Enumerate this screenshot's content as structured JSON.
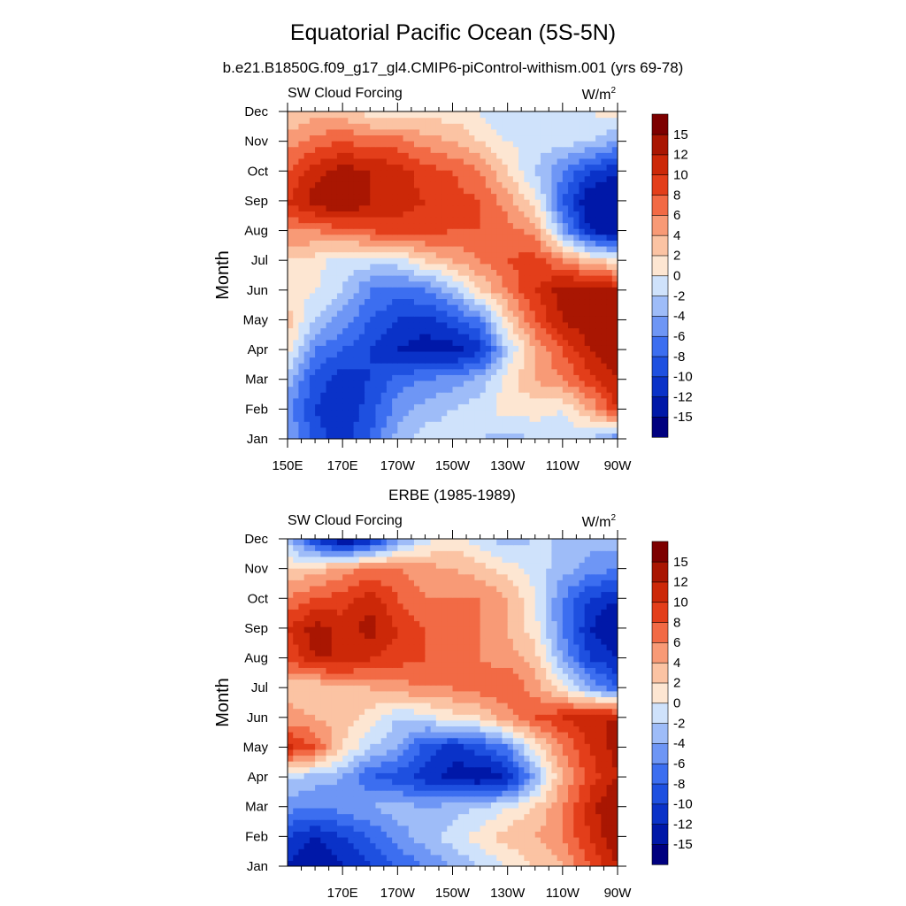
{
  "figure": {
    "title": "Equatorial Pacific Ocean (5S-5N)",
    "subtitle": "b.e21.B1850G.f09_g17_gl4.CMIP6-piControl-withism.001 (yrs 69-78)"
  },
  "colors": {
    "palette": [
      "#00007f",
      "#0018a8",
      "#0a32c8",
      "#1e50e0",
      "#3c6ef0",
      "#6e96f5",
      "#9ebcf8",
      "#cfe2fb",
      "#fde6d2",
      "#fbc3a3",
      "#f89a76",
      "#f26a45",
      "#e33e1a",
      "#cc2808",
      "#a91602",
      "#7d0000"
    ]
  },
  "chart_data": [
    {
      "type": "heatmap",
      "panel_title": "",
      "left_label": "SW Cloud Forcing",
      "units_base": "W/m",
      "units_sup": "2",
      "ylabel": "Month",
      "x_ticks": [
        "150E",
        "170E",
        "170W",
        "150W",
        "130W",
        "110W",
        "90W"
      ],
      "x_values": [
        150,
        170,
        190,
        210,
        230,
        250,
        270
      ],
      "xlim": [
        150,
        270
      ],
      "y_ticks": [
        "Jan",
        "Feb",
        "Mar",
        "Apr",
        "May",
        "Jun",
        "Jul",
        "Aug",
        "Sep",
        "Oct",
        "Nov",
        "Dec"
      ],
      "colorbar_levels": [
        "15",
        "12",
        "10",
        "8",
        "6",
        "4",
        "2",
        "0",
        "-2",
        "-4",
        "-6",
        "-8",
        "-10",
        "-12",
        "-15"
      ],
      "lon": [
        150,
        160,
        170,
        180,
        190,
        200,
        210,
        220,
        230,
        240,
        250,
        260,
        270
      ],
      "values": [
        [
          -4,
          -9,
          -11,
          -8,
          -3,
          -1,
          -1,
          -2,
          -3,
          -2,
          -1,
          -2,
          -6
        ],
        [
          -5,
          -10,
          -12,
          -9,
          -5,
          -3,
          -2,
          -1,
          1,
          1,
          0,
          4,
          10
        ],
        [
          -3,
          -9,
          -11,
          -10,
          -7,
          -6,
          -5,
          -3,
          1,
          4,
          6,
          9,
          12
        ],
        [
          1,
          -6,
          -8,
          -10,
          -12,
          -13,
          -13,
          -11,
          -2,
          4,
          8,
          12,
          15
        ],
        [
          3,
          -2,
          -5,
          -8,
          -10,
          -11,
          -9,
          -6,
          2,
          8,
          12,
          14,
          15
        ],
        [
          1,
          0,
          -2,
          -6,
          -7,
          -6,
          -3,
          2,
          6,
          10,
          13,
          14,
          12
        ],
        [
          2,
          1,
          -1,
          -1,
          -1,
          2,
          4,
          6,
          8,
          9,
          6,
          3,
          1
        ],
        [
          6,
          6,
          7,
          8,
          9,
          9,
          8,
          8,
          7,
          5,
          -4,
          -12,
          -14
        ],
        [
          10,
          13,
          15,
          12,
          11,
          10,
          9,
          8,
          5,
          1,
          -8,
          -14,
          -15
        ],
        [
          8,
          11,
          13,
          12,
          11,
          9,
          8,
          6,
          2,
          -2,
          -6,
          -10,
          -12
        ],
        [
          5,
          7,
          8,
          7,
          7,
          5,
          4,
          2,
          0,
          -1,
          -1,
          -2,
          -4
        ],
        [
          2,
          3,
          3,
          1,
          1,
          1,
          1,
          0,
          -2,
          -1,
          -1,
          0,
          1
        ]
      ]
    },
    {
      "type": "heatmap",
      "panel_title": "ERBE (1985-1989)",
      "left_label": "SW Cloud Forcing",
      "units_base": "W/m",
      "units_sup": "2",
      "ylabel": "Month",
      "x_ticks": [
        "170E",
        "170W",
        "150W",
        "130W",
        "110W",
        "90W"
      ],
      "x_values": [
        170,
        190,
        210,
        230,
        250,
        270
      ],
      "xlim": [
        150,
        270
      ],
      "y_ticks": [
        "Jan",
        "Feb",
        "Mar",
        "Apr",
        "May",
        "Jun",
        "Jul",
        "Aug",
        "Sep",
        "Oct",
        "Nov",
        "Dec"
      ],
      "colorbar_levels": [
        "15",
        "12",
        "10",
        "8",
        "6",
        "4",
        "2",
        "0",
        "-2",
        "-4",
        "-6",
        "-8",
        "-10",
        "-12",
        "-15"
      ],
      "lon": [
        150,
        160,
        170,
        180,
        190,
        200,
        210,
        220,
        230,
        240,
        250,
        260,
        270
      ],
      "values": [
        [
          -12,
          -14,
          -12,
          -10,
          -8,
          -6,
          -4,
          -2,
          0,
          2,
          4,
          8,
          12
        ],
        [
          -10,
          -12,
          -10,
          -8,
          -5,
          -3,
          -1,
          1,
          3,
          4,
          6,
          10,
          14
        ],
        [
          -5,
          -6,
          -5,
          -4,
          -3,
          -4,
          -3,
          -2,
          0,
          2,
          6,
          11,
          15
        ],
        [
          -2,
          -3,
          -4,
          -8,
          -9,
          -11,
          -13,
          -14,
          -12,
          -4,
          4,
          9,
          12
        ],
        [
          11,
          8,
          2,
          -2,
          -4,
          -9,
          -11,
          -9,
          -6,
          1,
          6,
          10,
          13
        ],
        [
          5,
          4,
          3,
          1,
          -2,
          -1,
          1,
          2,
          5,
          8,
          10,
          12,
          12
        ],
        [
          3,
          2,
          3,
          4,
          5,
          6,
          6,
          7,
          8,
          5,
          1,
          -4,
          -8
        ],
        [
          8,
          12,
          12,
          10,
          9,
          8,
          7,
          6,
          5,
          3,
          -4,
          -10,
          -12
        ],
        [
          10,
          13,
          11,
          13,
          10,
          8,
          7,
          6,
          4,
          1,
          -6,
          -12,
          -15
        ],
        [
          6,
          8,
          9,
          11,
          8,
          6,
          6,
          6,
          4,
          0,
          -6,
          -10,
          -12
        ],
        [
          2,
          3,
          5,
          7,
          6,
          5,
          4,
          3,
          1,
          -1,
          -3,
          -5,
          -6
        ],
        [
          -3,
          -10,
          -15,
          -12,
          -5,
          -1,
          1,
          -1,
          -3,
          -2,
          -2,
          -3,
          -3
        ]
      ]
    }
  ]
}
